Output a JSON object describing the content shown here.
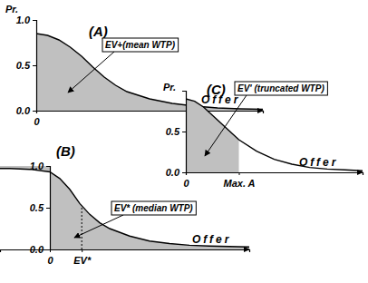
{
  "chart_data": [
    {
      "type": "area",
      "title": "(A)",
      "y_label": "Pr.",
      "x_label": "Offer",
      "annotation": "EV+(mean WTP)",
      "x": [
        0,
        0.5,
        1,
        1.5,
        2,
        2.5,
        3,
        3.5,
        4,
        5,
        6,
        7,
        8,
        9,
        10
      ],
      "values": [
        0.85,
        0.83,
        0.78,
        0.7,
        0.6,
        0.48,
        0.37,
        0.28,
        0.21,
        0.13,
        0.08,
        0.05,
        0.03,
        0.02,
        0.015
      ],
      "xlim": [
        0,
        10
      ],
      "ylim": [
        0,
        1
      ],
      "xticks": [
        0
      ],
      "yticks": [
        {
          "value": 0,
          "label": "0.0"
        },
        {
          "value": 0.5,
          "label": "0.5"
        },
        {
          "value": 1,
          "label": "1.0"
        }
      ],
      "color": "#c0c0c0"
    },
    {
      "type": "area",
      "title": "(B)",
      "x_label": "Offer",
      "annotation": "EV* (median WTP)",
      "x": [
        -2.5,
        -2,
        -1,
        0,
        0.5,
        1,
        1.5,
        2,
        2.5,
        3,
        4,
        5,
        6,
        7,
        8,
        10
      ],
      "values": [
        0.97,
        0.97,
        0.96,
        0.93,
        0.85,
        0.72,
        0.55,
        0.42,
        0.32,
        0.25,
        0.16,
        0.1,
        0.07,
        0.05,
        0.04,
        0.03
      ],
      "xlim": [
        -2.5,
        10
      ],
      "ylim": [
        0,
        1
      ],
      "xticks": [
        0,
        {
          "value": 1.6,
          "label": "EV*"
        }
      ],
      "yticks": [
        {
          "value": 0,
          "label": "0.0"
        },
        {
          "value": 0.5,
          "label": "0.5"
        },
        {
          "value": 1,
          "label": "1.0"
        }
      ],
      "color": "#c0c0c0"
    },
    {
      "type": "area",
      "title": "(C)",
      "y_label": "Pr.",
      "x_label": "Offer",
      "annotation": "EV' (truncated WTP)",
      "x": [
        0,
        0.5,
        1,
        1.5,
        2,
        2.5,
        3,
        4,
        5,
        6,
        7,
        8,
        9,
        10
      ],
      "values": [
        0.9,
        0.87,
        0.8,
        0.7,
        0.6,
        0.5,
        0.4,
        0.26,
        0.16,
        0.1,
        0.06,
        0.04,
        0.03,
        0.02
      ],
      "xlim": [
        0,
        10
      ],
      "ylim": [
        0,
        1
      ],
      "xticks": [
        0,
        {
          "value": 3,
          "label": "Max. A"
        }
      ],
      "yticks": [
        {
          "value": 0,
          "label": "0.0"
        },
        {
          "value": 0.5,
          "label": "0.5"
        }
      ],
      "color": "#c0c0c0"
    }
  ]
}
